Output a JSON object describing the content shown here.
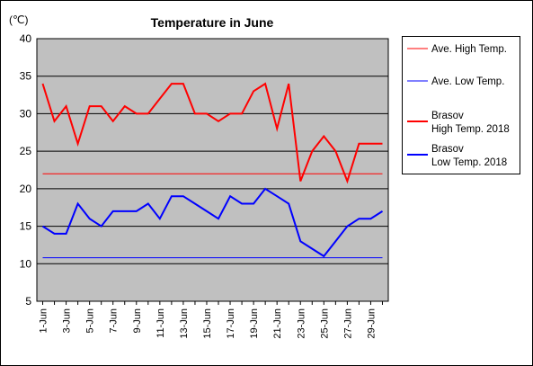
{
  "chart_data": {
    "type": "line",
    "title": "Temperature in June",
    "unit_label": "(℃)",
    "ylim": [
      5,
      40
    ],
    "yticks": [
      5,
      10,
      15,
      20,
      25,
      30,
      35,
      40
    ],
    "x": [
      "1-Jun",
      "2-Jun",
      "3-Jun",
      "4-Jun",
      "5-Jun",
      "6-Jun",
      "7-Jun",
      "8-Jun",
      "9-Jun",
      "10-Jun",
      "11-Jun",
      "12-Jun",
      "13-Jun",
      "14-Jun",
      "15-Jun",
      "16-Jun",
      "17-Jun",
      "18-Jun",
      "19-Jun",
      "20-Jun",
      "21-Jun",
      "22-Jun",
      "23-Jun",
      "24-Jun",
      "25-Jun",
      "26-Jun",
      "27-Jun",
      "28-Jun",
      "29-Jun",
      "30-Jun"
    ],
    "xtick_labels": [
      "1-Jun",
      "3-Jun",
      "5-Jun",
      "7-Jun",
      "9-Jun",
      "11-Jun",
      "13-Jun",
      "15-Jun",
      "17-Jun",
      "19-Jun",
      "21-Jun",
      "23-Jun",
      "25-Jun",
      "27-Jun",
      "29-Jun"
    ],
    "grid": "horizontal",
    "legend_position": "right",
    "plot_background": "#c0c0c0",
    "series": [
      {
        "name": "Ave. High Temp.",
        "color": "#ff0000",
        "stroke": "thin",
        "values": [
          22,
          22,
          22,
          22,
          22,
          22,
          22,
          22,
          22,
          22,
          22,
          22,
          22,
          22,
          22,
          22,
          22,
          22,
          22,
          22,
          22,
          22,
          22,
          22,
          22,
          22,
          22,
          22,
          22,
          22
        ]
      },
      {
        "name": "Ave. Low Temp.",
        "color": "#0000ff",
        "stroke": "thin",
        "values": [
          10.8,
          10.8,
          10.8,
          10.8,
          10.8,
          10.8,
          10.8,
          10.8,
          10.8,
          10.8,
          10.8,
          10.8,
          10.8,
          10.8,
          10.8,
          10.8,
          10.8,
          10.8,
          10.8,
          10.8,
          10.8,
          10.8,
          10.8,
          10.8,
          10.8,
          10.8,
          10.8,
          10.8,
          10.8,
          10.8
        ]
      },
      {
        "name": "Brasov\nHigh Temp. 2018",
        "color": "#ff0000",
        "stroke": "thick",
        "values": [
          34,
          29,
          31,
          26,
          31,
          31,
          29,
          31,
          30,
          30,
          32,
          34,
          34,
          30,
          30,
          29,
          30,
          30,
          33,
          34,
          28,
          34,
          21,
          25,
          27,
          25,
          21,
          26,
          26,
          26
        ]
      },
      {
        "name": "Brasov\nLow Temp. 2018",
        "color": "#0000ff",
        "stroke": "thick",
        "values": [
          15,
          14,
          14,
          18,
          16,
          15,
          17,
          17,
          17,
          18,
          16,
          19,
          19,
          18,
          17,
          16,
          19,
          18,
          18,
          20,
          19,
          18,
          13,
          12,
          11,
          13,
          15,
          16,
          16,
          17
        ]
      }
    ]
  }
}
